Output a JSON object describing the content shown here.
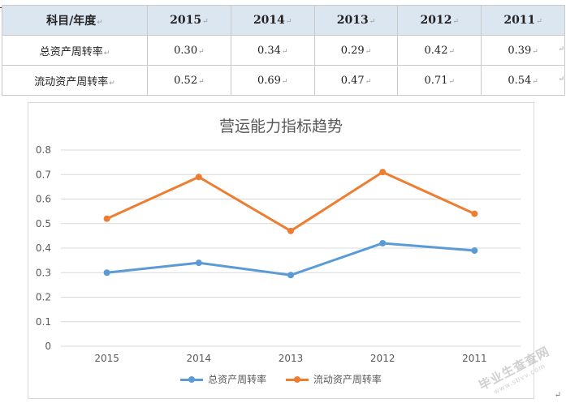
{
  "table": {
    "header": [
      "科目/年度",
      "2015",
      "2014",
      "2013",
      "2012",
      "2011"
    ],
    "rows": [
      {
        "label": "总资产周转率",
        "values": [
          "0.30",
          "0.34",
          "0.29",
          "0.42",
          "0.39"
        ]
      },
      {
        "label": "流动资产周转率",
        "values": [
          "0.52",
          "0.69",
          "0.47",
          "0.71",
          "0.54"
        ]
      }
    ],
    "mark": "↵"
  },
  "chart_data": {
    "type": "line",
    "title": "营运能力指标趋势",
    "categories": [
      "2015",
      "2014",
      "2013",
      "2012",
      "2011"
    ],
    "series": [
      {
        "name": "总资产周转率",
        "values": [
          0.3,
          0.34,
          0.29,
          0.42,
          0.39
        ],
        "color": "#5b9bd5"
      },
      {
        "name": "流动资产周转率",
        "values": [
          0.52,
          0.69,
          0.47,
          0.71,
          0.54
        ],
        "color": "#ed7d31"
      }
    ],
    "ylim": [
      0,
      0.8
    ],
    "yticks": [
      "0",
      "0.1",
      "0.2",
      "0.3",
      "0.4",
      "0.5",
      "0.6",
      "0.7",
      "0.8"
    ],
    "xlabel": "",
    "ylabel": "",
    "grid": true,
    "legend": "bottom"
  },
  "watermark": {
    "text": "毕业生查查网",
    "sub": "www.sbvv.com"
  },
  "return_mark": "↵"
}
